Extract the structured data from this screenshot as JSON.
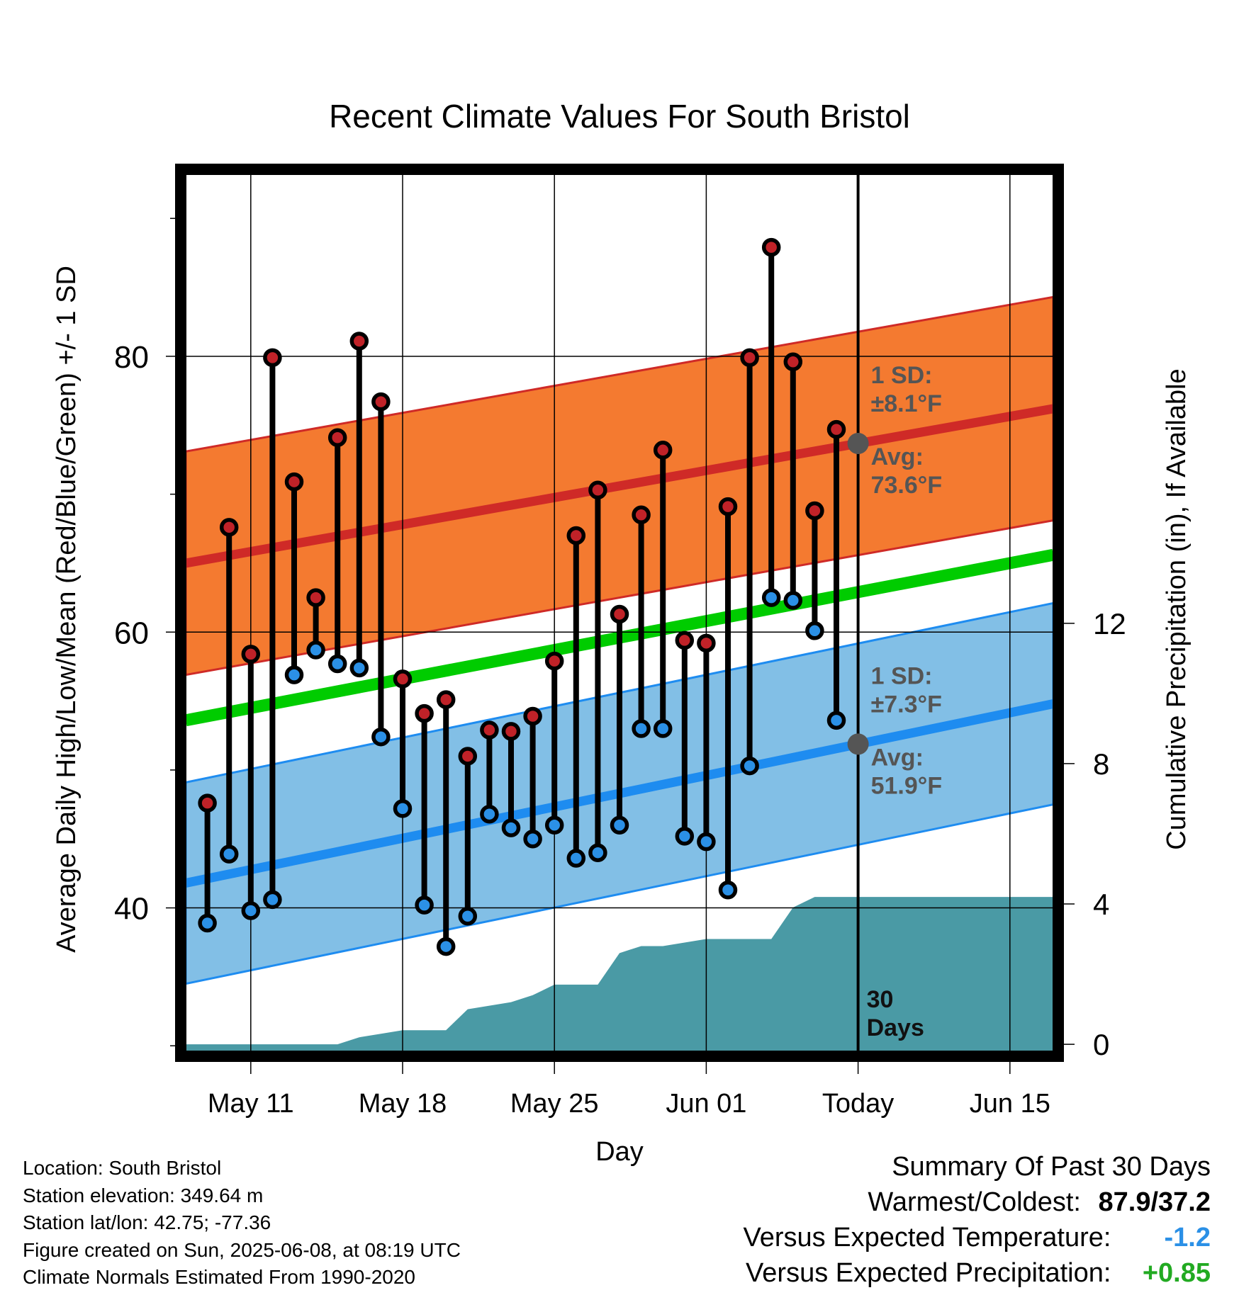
{
  "chart_data": {
    "type": "line",
    "title": "Recent Climate Values For South Bristol",
    "xlabel": "Day",
    "ylabel": "Average Daily High/Low/Mean (Red/Blue/Green) +/- 1 SD",
    "y2label": "Cumulative Precipitation (in), If Available",
    "x_tick_labels": [
      "May 11",
      "May 18",
      "May 25",
      "Jun 01",
      "Today",
      "Jun 15"
    ],
    "x_ticks": [
      "2025-05-11",
      "2025-05-18",
      "2025-05-25",
      "2025-06-01",
      "2025-06-08",
      "2025-06-15"
    ],
    "xlim": [
      "2025-05-08",
      "2025-06-17"
    ],
    "ylim": [
      29.6,
      93.2
    ],
    "yticks": [
      40,
      60,
      80
    ],
    "y2lim": [
      -0.2,
      24.8
    ],
    "y2ticks": [
      0,
      4,
      8,
      12
    ],
    "grid": true,
    "today": "2025-06-08",
    "series": [
      {
        "name": "High",
        "color": "#c02228",
        "dates": [
          "2025-05-09",
          "2025-05-10",
          "2025-05-11",
          "2025-05-12",
          "2025-05-13",
          "2025-05-14",
          "2025-05-15",
          "2025-05-16",
          "2025-05-17",
          "2025-05-18",
          "2025-05-19",
          "2025-05-20",
          "2025-05-21",
          "2025-05-22",
          "2025-05-23",
          "2025-05-24",
          "2025-05-25",
          "2025-05-26",
          "2025-05-27",
          "2025-05-28",
          "2025-05-29",
          "2025-05-30",
          "2025-05-31",
          "2025-06-01",
          "2025-06-02",
          "2025-06-03",
          "2025-06-04",
          "2025-06-05",
          "2025-06-06",
          "2025-06-07"
        ],
        "values": [
          47.6,
          67.6,
          58.4,
          79.9,
          70.9,
          62.5,
          74.1,
          81.1,
          76.7,
          56.6,
          54.1,
          55.1,
          51.0,
          52.9,
          52.8,
          53.9,
          57.9,
          67.0,
          70.3,
          61.3,
          68.5,
          73.2,
          59.4,
          59.2,
          69.1,
          79.9,
          87.9,
          79.6,
          68.8,
          74.7
        ]
      },
      {
        "name": "Low",
        "color": "#2b90e6",
        "dates": [
          "2025-05-09",
          "2025-05-10",
          "2025-05-11",
          "2025-05-12",
          "2025-05-13",
          "2025-05-14",
          "2025-05-15",
          "2025-05-16",
          "2025-05-17",
          "2025-05-18",
          "2025-05-19",
          "2025-05-20",
          "2025-05-21",
          "2025-05-22",
          "2025-05-23",
          "2025-05-24",
          "2025-05-25",
          "2025-05-26",
          "2025-05-27",
          "2025-05-28",
          "2025-05-29",
          "2025-05-30",
          "2025-05-31",
          "2025-06-01",
          "2025-06-02",
          "2025-06-03",
          "2025-06-04",
          "2025-06-05",
          "2025-06-06",
          "2025-06-07"
        ],
        "values": [
          38.9,
          43.9,
          39.8,
          40.6,
          56.9,
          58.7,
          57.7,
          57.4,
          52.4,
          47.2,
          40.2,
          37.2,
          39.4,
          46.8,
          45.8,
          45.0,
          46.0,
          43.6,
          44.0,
          46.0,
          53.0,
          53.0,
          45.2,
          44.8,
          41.3,
          50.3,
          62.5,
          62.3,
          60.1,
          53.6
        ]
      }
    ],
    "normals": {
      "dates": [
        "2025-05-08",
        "2025-06-17"
      ],
      "high": [
        65.0,
        76.2
      ],
      "high_sd": 8.1,
      "low": [
        41.8,
        54.8
      ],
      "low_sd": 7.3,
      "mean": [
        53.6,
        65.6
      ],
      "colors": {
        "high_band": "#f47a30",
        "high_line": "#cf2a27",
        "low_band": "#82bfe6",
        "low_line": "#1e8cf0",
        "mean_line": "#00cc00"
      }
    },
    "precipitation": {
      "color": "#4a9aa5",
      "dates": [
        "2025-05-08",
        "2025-05-15",
        "2025-05-16",
        "2025-05-17",
        "2025-05-18",
        "2025-05-19",
        "2025-05-20",
        "2025-05-21",
        "2025-05-22",
        "2025-05-23",
        "2025-05-24",
        "2025-05-25",
        "2025-05-26",
        "2025-05-27",
        "2025-05-28",
        "2025-05-29",
        "2025-05-30",
        "2025-05-31",
        "2025-06-01",
        "2025-06-02",
        "2025-06-03",
        "2025-06-04",
        "2025-06-05",
        "2025-06-06",
        "2025-06-17"
      ],
      "values": [
        0,
        0,
        0.2,
        0.3,
        0.4,
        0.4,
        0.4,
        1.0,
        1.1,
        1.2,
        1.4,
        1.7,
        1.7,
        1.7,
        2.6,
        2.8,
        2.8,
        2.9,
        3.0,
        3.0,
        3.0,
        3.0,
        3.9,
        4.2,
        4.2
      ]
    },
    "annotations": {
      "high_sd_label": "1 SD:",
      "high_sd_value": "±8.1°F",
      "high_avg_label": "Avg:",
      "high_avg_value": "73.6°F",
      "low_sd_label": "1 SD:",
      "low_sd_value": "±7.3°F",
      "low_avg_label": "Avg:",
      "low_avg_value": "51.9°F",
      "days_line1": "30",
      "days_line2": "Days"
    }
  },
  "footer": {
    "location": "Location: South Bristol",
    "elevation": "Station elevation: 349.64 m",
    "latlon": "Station lat/lon: 42.75; -77.36",
    "created": "Figure created on Sun, 2025-06-08, at 08:19 UTC",
    "normals": "Climate Normals Estimated From 1990-2020"
  },
  "summary": {
    "title": "Summary Of Past 30 Days",
    "warm_cold_label": "Warmest/Coldest:",
    "warm_cold_value": "87.9/37.2",
    "temp_label": "Versus Expected Temperature:",
    "temp_value": "-1.2",
    "temp_color": "#2b90e6",
    "precip_label": "Versus Expected Precipitation:",
    "precip_value": "+0.85",
    "precip_color": "#22aa22"
  }
}
